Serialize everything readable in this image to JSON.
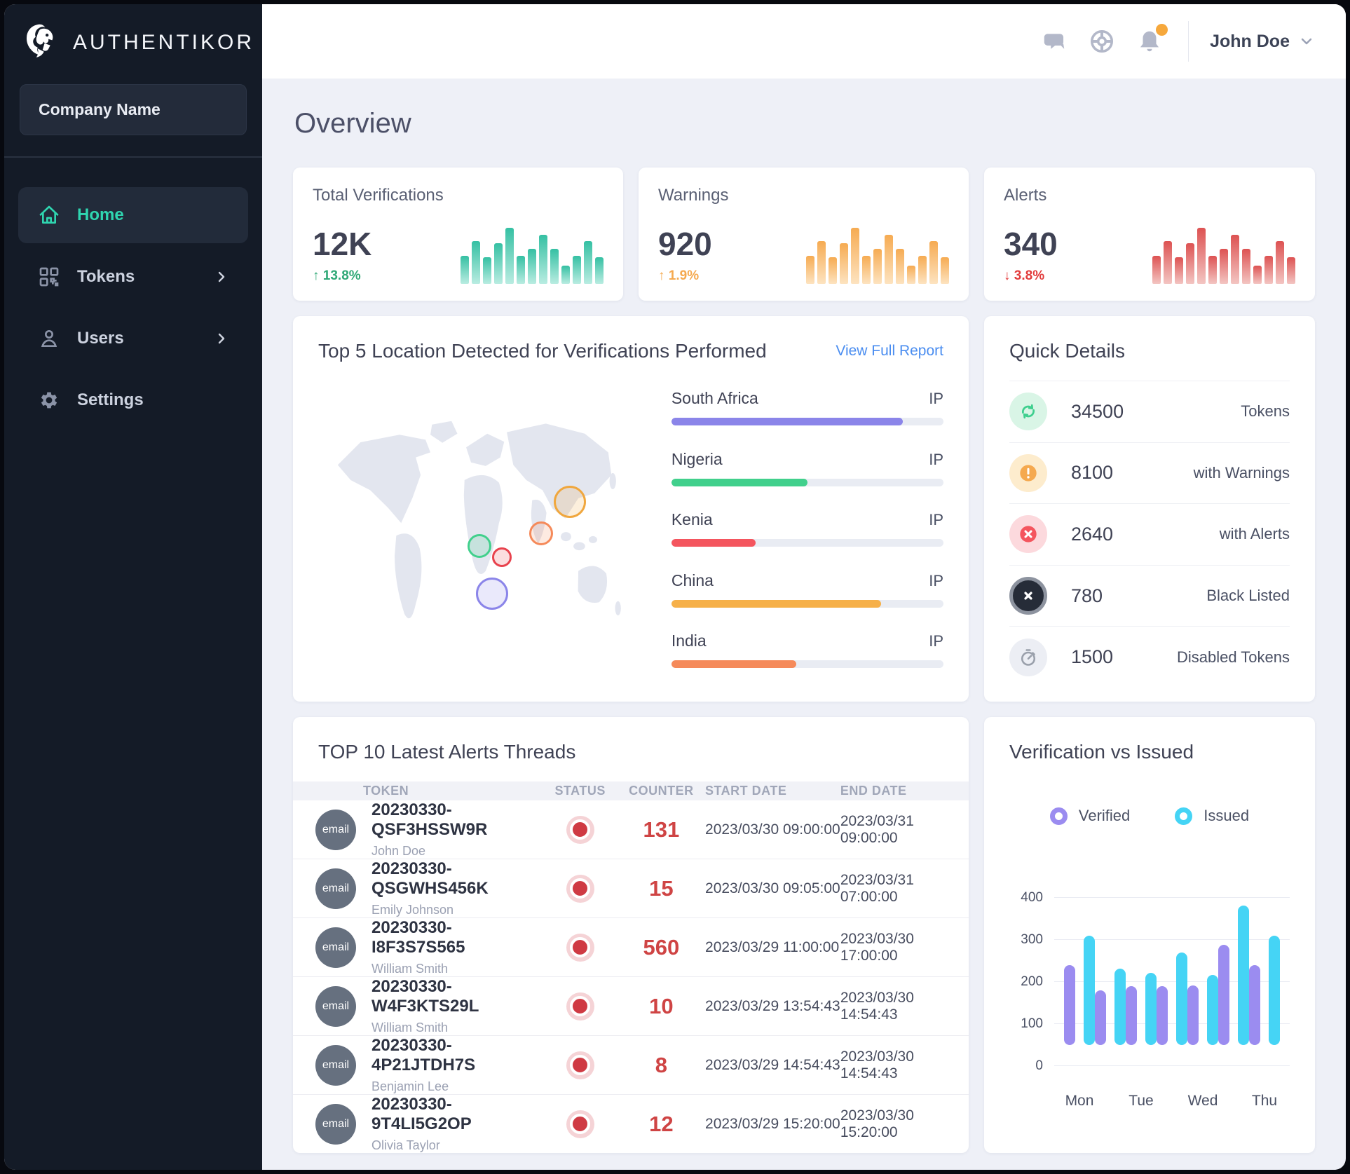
{
  "brand": {
    "name": "AUTHENTIKOR"
  },
  "sidebar": {
    "company": "Company Name",
    "items": [
      {
        "label": "Home"
      },
      {
        "label": "Tokens"
      },
      {
        "label": "Users"
      },
      {
        "label": "Settings"
      }
    ]
  },
  "header": {
    "user_name": "John Doe"
  },
  "page": {
    "title": "Overview"
  },
  "stats": [
    {
      "title": "Total Verifications",
      "value": "12K",
      "arrow": "↑",
      "delta": "13.8%",
      "delta_color": "#2fa876",
      "color": "#35c0a3",
      "color_light": "#b9ece1"
    },
    {
      "title": "Warnings",
      "value": "920",
      "arrow": "↑",
      "delta": "1.9%",
      "delta_color": "#f5a94f",
      "color": "#f6ab52",
      "color_light": "#fde3c0"
    },
    {
      "title": "Alerts",
      "value": "340",
      "arrow": "↓",
      "delta": "3.8%",
      "delta_color": "#e23b3b",
      "color": "#dd5252",
      "color_light": "#f3c5c2"
    }
  ],
  "locations": {
    "title": "Top 5 Location Detected for Verifications Performed",
    "link": "View Full Report",
    "rows": [
      {
        "name": "South Africa",
        "unit": "IP",
        "pct": 85,
        "color": "#8b85e9"
      },
      {
        "name": "Nigeria",
        "unit": "IP",
        "pct": 50,
        "color": "#41d08c"
      },
      {
        "name": "Kenia",
        "unit": "IP",
        "pct": 31,
        "color": "#f4555e"
      },
      {
        "name": "China",
        "unit": "IP",
        "pct": 77,
        "color": "#f6b049"
      },
      {
        "name": "India",
        "unit": "IP",
        "pct": 46,
        "color": "#f58a5a"
      }
    ],
    "bubbles": [
      {
        "x": 49.5,
        "y": 56.0,
        "r": 17,
        "color": "#41d08c"
      },
      {
        "x": 56.5,
        "y": 60.5,
        "r": 14,
        "color": "#e8424d"
      },
      {
        "x": 53.5,
        "y": 75.0,
        "r": 23,
        "color": "#8b85e9"
      },
      {
        "x": 68.5,
        "y": 51.0,
        "r": 17,
        "color": "#f58a5a"
      },
      {
        "x": 77.5,
        "y": 38.5,
        "r": 23,
        "color": "#f0a73e"
      }
    ]
  },
  "quick": {
    "title": "Quick Details",
    "rows": [
      {
        "value": "34500",
        "label": "Tokens"
      },
      {
        "value": "8100",
        "label": "with Warnings"
      },
      {
        "value": "2640",
        "label": "with Alerts"
      },
      {
        "value": "780",
        "label": "Black Listed"
      },
      {
        "value": "1500",
        "label": "Disabled Tokens"
      }
    ]
  },
  "alerts_table": {
    "title": "TOP 10 Latest Alerts Threads",
    "columns": [
      "TOKEN",
      "STATUS",
      "COUNTER",
      "START DATE",
      "END DATE"
    ],
    "avatar_label": "email",
    "rows": [
      {
        "token": "20230330-QSF3HSSW9R",
        "name": "John Doe",
        "counter": "131",
        "start": "2023/03/30 09:00:00",
        "end": "2023/03/31 09:00:00"
      },
      {
        "token": "20230330-QSGWHS456K",
        "name": "Emily Johnson",
        "counter": "15",
        "start": "2023/03/30 09:05:00",
        "end": "2023/03/31 07:00:00"
      },
      {
        "token": "20230330-I8F3S7S565",
        "name": "William Smith",
        "counter": "560",
        "start": "2023/03/29 11:00:00",
        "end": "2023/03/30 17:00:00"
      },
      {
        "token": "20230330-W4F3KTS29L",
        "name": "William Smith",
        "counter": "10",
        "start": "2023/03/29 13:54:43",
        "end": "2023/03/30 14:54:43"
      },
      {
        "token": "20230330-4P21JTDH7S",
        "name": "Benjamin Lee",
        "counter": "8",
        "start": "2023/03/29 14:54:43",
        "end": "2023/03/30 14:54:43"
      },
      {
        "token": "20230330-9T4LI5G2OP",
        "name": "Olivia Taylor",
        "counter": "12",
        "start": "2023/03/29 15:20:00",
        "end": "2023/03/30 15:20:00"
      }
    ]
  },
  "chart_data": [
    {
      "id": "verification-vs-issued",
      "type": "bar",
      "title": "Verification vs Issued",
      "legend": [
        {
          "name": "Verified",
          "color": "#9b8cf0"
        },
        {
          "name": "Issued",
          "color": "#45d4f5"
        }
      ],
      "categories": [
        "Mon",
        "Tue",
        "Wed",
        "Thu"
      ],
      "x_slots": [
        "Mon",
        "",
        "Tue",
        "",
        "Wed",
        "",
        "Thu"
      ],
      "series": [
        {
          "name": "Verified",
          "color": "#9b8cf0",
          "values": [
            240,
            180,
            190,
            190,
            192,
            288,
            240
          ]
        },
        {
          "name": "Issued",
          "color": "#45d4f5",
          "values": [
            310,
            232,
            222,
            270,
            217,
            382,
            310
          ]
        }
      ],
      "ylim": [
        0,
        400
      ],
      "yticks": [
        0,
        100,
        200,
        300,
        400
      ],
      "bar_base": 50,
      "grid": true,
      "legend_position": "top"
    },
    {
      "id": "stat-sparkline-pattern",
      "type": "bar",
      "title": "stat card sparkline (percent of max, shared pattern)",
      "values": [
        50,
        76,
        47,
        73,
        100,
        50,
        63,
        88,
        62,
        33,
        50,
        76,
        48
      ]
    }
  ]
}
